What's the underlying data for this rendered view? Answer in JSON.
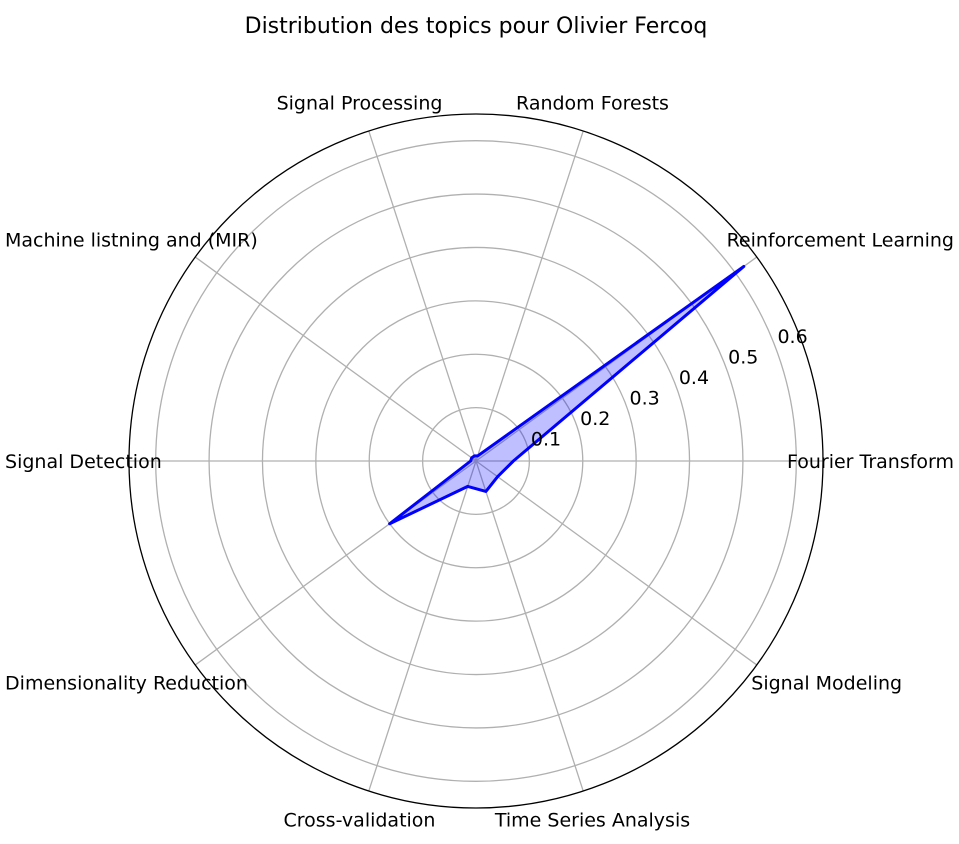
{
  "chart_data": {
    "type": "radar",
    "title": "Distribution des topics pour Olivier Fercoq",
    "categories": [
      "Fourier Transform",
      "Reinforcement Learning",
      "Random Forests",
      "Signal Processing",
      "Machine listning and (MIR)",
      "Signal Detection",
      "Dimensionality Reduction",
      "Cross-validation",
      "Time Series Analysis",
      "Signal Modeling"
    ],
    "series": [
      {
        "values": [
          0.07,
          0.62,
          0.01,
          0.01,
          0.01,
          0.01,
          0.2,
          0.05,
          0.06,
          0.05
        ],
        "line_color": "#0000ff",
        "fill_color": "#0000ff",
        "fill_opacity": 0.25
      }
    ],
    "rlim": [
      0,
      0.65
    ],
    "radial_ticks": [
      0.1,
      0.2,
      0.3,
      0.4,
      0.5,
      0.6
    ],
    "radial_tick_labels": [
      "0.1",
      "0.2",
      "0.3",
      "0.4",
      "0.5",
      "0.6"
    ],
    "grid": true,
    "legend": "none"
  }
}
